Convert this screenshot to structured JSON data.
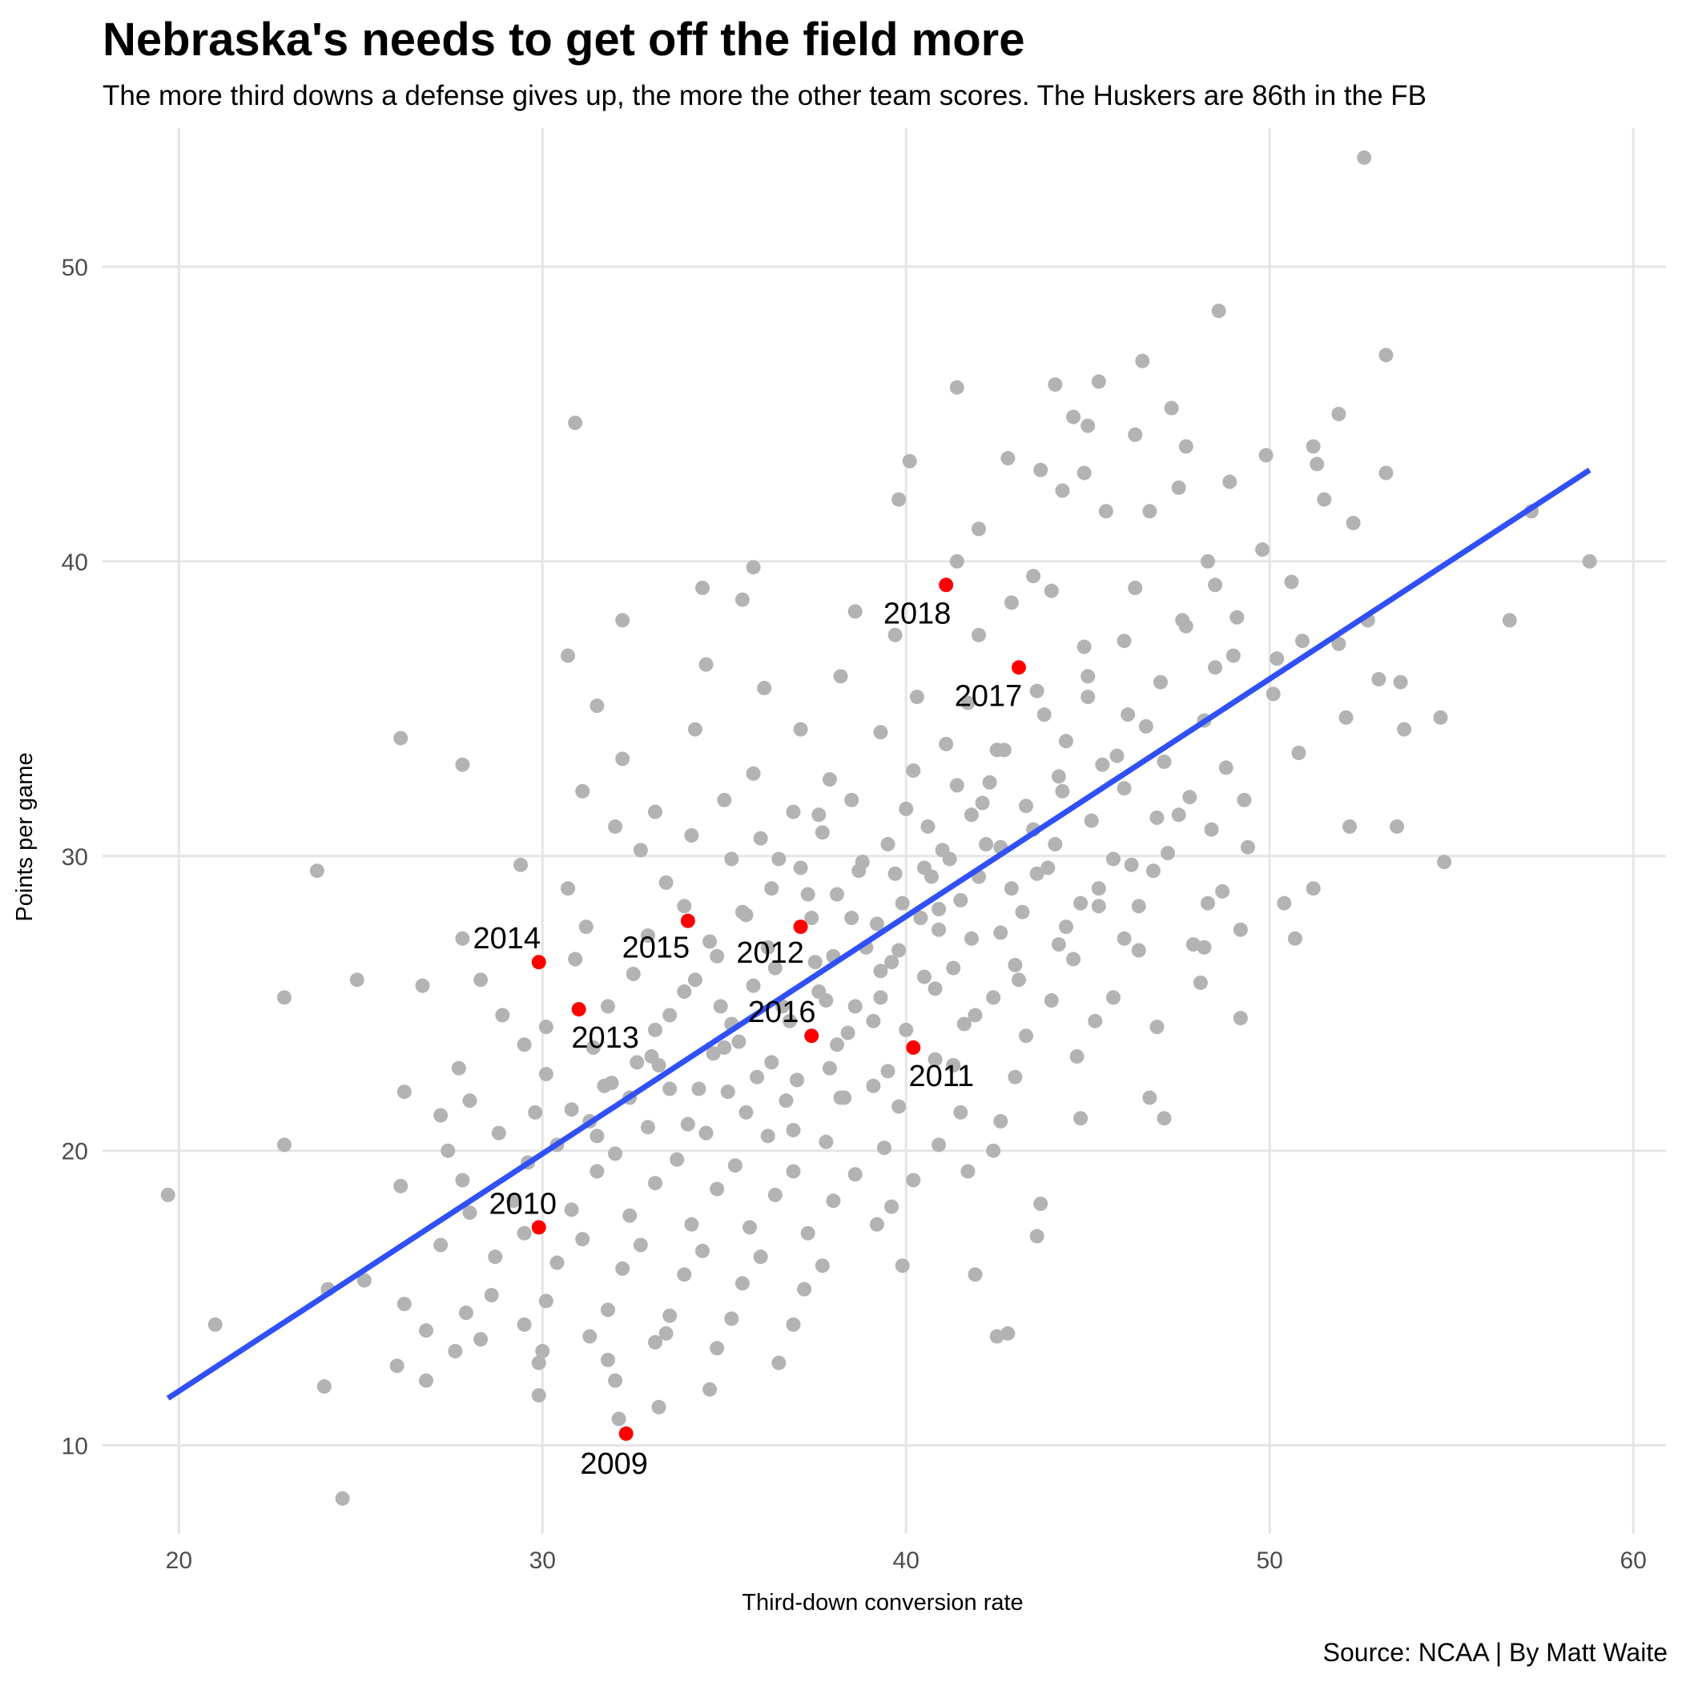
{
  "chart_data": {
    "type": "scatter",
    "title": "Nebraska's needs to get off the field more",
    "subtitle": "The more third downs a defense gives up, the more the other team scores. The Huskers are 86th in the FB",
    "caption": "Source: NCAA | By Matt Waite",
    "xlabel": "Third-down conversion rate",
    "ylabel": "Points per game",
    "xlim": [
      17.9,
      60.9
    ],
    "ylim": [
      7.0,
      54.7
    ],
    "xticks": [
      20,
      30,
      40,
      50,
      60
    ],
    "yticks": [
      10,
      20,
      30,
      40,
      50
    ],
    "grid": true,
    "colors": {
      "points": "#b3b3b3",
      "highlight": "#ff0000",
      "trend": "#3050f8",
      "grid": "#e5e5e5"
    },
    "trend_line": {
      "x": [
        19.7,
        58.8
      ],
      "y": [
        11.6,
        43.1
      ]
    },
    "highlighted": [
      {
        "label": "2009",
        "x": 32.3,
        "y": 10.4
      },
      {
        "label": "2010",
        "x": 29.9,
        "y": 17.4
      },
      {
        "label": "2011",
        "x": 40.2,
        "y": 23.5
      },
      {
        "label": "2012",
        "x": 37.1,
        "y": 27.6
      },
      {
        "label": "2013",
        "x": 31.0,
        "y": 24.8
      },
      {
        "label": "2014",
        "x": 29.9,
        "y": 26.4
      },
      {
        "label": "2015",
        "x": 34.0,
        "y": 27.8
      },
      {
        "label": "2016",
        "x": 37.4,
        "y": 23.9
      },
      {
        "label": "2017",
        "x": 43.1,
        "y": 36.4
      },
      {
        "label": "2018",
        "x": 41.1,
        "y": 39.2
      }
    ],
    "points": [
      [
        52.6,
        53.7
      ],
      [
        48.6,
        48.5
      ],
      [
        53.2,
        47.0
      ],
      [
        46.5,
        46.8
      ],
      [
        45.3,
        46.1
      ],
      [
        41.4,
        45.9
      ],
      [
        44.1,
        46.0
      ],
      [
        47.3,
        45.2
      ],
      [
        51.9,
        45.0
      ],
      [
        44.6,
        44.9
      ],
      [
        30.9,
        44.7
      ],
      [
        45.0,
        44.6
      ],
      [
        46.3,
        44.3
      ],
      [
        51.2,
        43.9
      ],
      [
        47.7,
        43.9
      ],
      [
        49.9,
        43.6
      ],
      [
        51.3,
        43.3
      ],
      [
        53.2,
        43.0
      ],
      [
        40.1,
        43.4
      ],
      [
        42.8,
        43.5
      ],
      [
        43.7,
        43.1
      ],
      [
        44.9,
        43.0
      ],
      [
        47.5,
        42.5
      ],
      [
        44.3,
        42.4
      ],
      [
        48.9,
        42.7
      ],
      [
        39.8,
        42.1
      ],
      [
        42.0,
        41.1
      ],
      [
        51.5,
        42.1
      ],
      [
        52.3,
        41.3
      ],
      [
        45.5,
        41.7
      ],
      [
        46.7,
        41.7
      ],
      [
        49.8,
        40.4
      ],
      [
        35.8,
        39.8
      ],
      [
        34.4,
        39.1
      ],
      [
        35.5,
        38.7
      ],
      [
        41.4,
        40.0
      ],
      [
        43.5,
        39.5
      ],
      [
        48.5,
        39.2
      ],
      [
        48.3,
        40.0
      ],
      [
        50.6,
        39.3
      ],
      [
        52.7,
        38.0
      ],
      [
        56.6,
        38.0
      ],
      [
        57.2,
        41.7
      ],
      [
        58.8,
        40.0
      ],
      [
        42.9,
        38.6
      ],
      [
        44.0,
        39.0
      ],
      [
        46.3,
        39.1
      ],
      [
        47.6,
        38.0
      ],
      [
        49.1,
        38.1
      ],
      [
        51.9,
        37.2
      ],
      [
        32.2,
        38.0
      ],
      [
        39.7,
        37.5
      ],
      [
        38.6,
        38.3
      ],
      [
        42.0,
        37.5
      ],
      [
        44.9,
        37.1
      ],
      [
        46.0,
        37.3
      ],
      [
        47.7,
        37.8
      ],
      [
        49.0,
        36.8
      ],
      [
        50.2,
        36.7
      ],
      [
        53.0,
        36.0
      ],
      [
        53.6,
        35.9
      ],
      [
        30.7,
        36.8
      ],
      [
        34.5,
        36.5
      ],
      [
        36.1,
        35.7
      ],
      [
        38.2,
        36.1
      ],
      [
        40.3,
        35.4
      ],
      [
        41.7,
        35.2
      ],
      [
        43.6,
        35.6
      ],
      [
        45.0,
        35.4
      ],
      [
        46.6,
        34.4
      ],
      [
        48.2,
        34.6
      ],
      [
        50.1,
        35.5
      ],
      [
        52.1,
        34.7
      ],
      [
        53.7,
        34.3
      ],
      [
        54.7,
        34.7
      ],
      [
        31.5,
        35.1
      ],
      [
        34.2,
        34.3
      ],
      [
        37.1,
        34.3
      ],
      [
        39.3,
        34.2
      ],
      [
        41.1,
        33.8
      ],
      [
        42.7,
        33.6
      ],
      [
        44.4,
        33.9
      ],
      [
        45.8,
        33.4
      ],
      [
        47.1,
        33.2
      ],
      [
        48.8,
        33.0
      ],
      [
        50.8,
        33.5
      ],
      [
        27.8,
        33.1
      ],
      [
        26.1,
        34.0
      ],
      [
        32.2,
        33.3
      ],
      [
        35.8,
        32.8
      ],
      [
        37.9,
        32.6
      ],
      [
        40.2,
        32.9
      ],
      [
        42.3,
        32.5
      ],
      [
        44.2,
        32.7
      ],
      [
        46.0,
        32.3
      ],
      [
        47.8,
        32.0
      ],
      [
        49.3,
        31.9
      ],
      [
        31.1,
        32.2
      ],
      [
        33.1,
        31.5
      ],
      [
        35.0,
        31.9
      ],
      [
        36.9,
        31.5
      ],
      [
        38.5,
        31.9
      ],
      [
        40.0,
        31.6
      ],
      [
        41.8,
        31.4
      ],
      [
        43.3,
        31.7
      ],
      [
        45.1,
        31.2
      ],
      [
        46.9,
        31.3
      ],
      [
        48.4,
        30.9
      ],
      [
        52.2,
        31.0
      ],
      [
        53.5,
        31.0
      ],
      [
        32.0,
        31.0
      ],
      [
        34.1,
        30.7
      ],
      [
        36.0,
        30.6
      ],
      [
        37.7,
        30.8
      ],
      [
        39.5,
        30.4
      ],
      [
        41.0,
        30.2
      ],
      [
        42.6,
        30.3
      ],
      [
        44.1,
        30.4
      ],
      [
        45.7,
        29.9
      ],
      [
        47.2,
        30.1
      ],
      [
        49.4,
        30.3
      ],
      [
        32.7,
        30.2
      ],
      [
        35.2,
        29.9
      ],
      [
        37.1,
        29.6
      ],
      [
        38.8,
        29.8
      ],
      [
        40.5,
        29.6
      ],
      [
        42.0,
        29.3
      ],
      [
        43.6,
        29.4
      ],
      [
        45.3,
        28.9
      ],
      [
        46.8,
        29.5
      ],
      [
        48.7,
        28.8
      ],
      [
        54.8,
        29.8
      ],
      [
        23.8,
        29.5
      ],
      [
        29.4,
        29.7
      ],
      [
        33.4,
        29.1
      ],
      [
        36.3,
        28.9
      ],
      [
        38.1,
        28.7
      ],
      [
        39.9,
        28.4
      ],
      [
        41.5,
        28.5
      ],
      [
        43.2,
        28.1
      ],
      [
        44.8,
        28.4
      ],
      [
        46.4,
        28.3
      ],
      [
        48.3,
        28.4
      ],
      [
        50.4,
        28.4
      ],
      [
        51.2,
        28.9
      ],
      [
        30.7,
        28.9
      ],
      [
        33.9,
        28.3
      ],
      [
        35.5,
        28.1
      ],
      [
        37.4,
        27.9
      ],
      [
        39.2,
        27.7
      ],
      [
        40.9,
        27.5
      ],
      [
        42.6,
        27.4
      ],
      [
        44.4,
        27.6
      ],
      [
        46.0,
        27.2
      ],
      [
        47.9,
        27.0
      ],
      [
        49.2,
        27.5
      ],
      [
        50.7,
        27.2
      ],
      [
        27.8,
        27.2
      ],
      [
        31.2,
        27.6
      ],
      [
        32.9,
        27.3
      ],
      [
        34.6,
        27.1
      ],
      [
        36.2,
        26.9
      ],
      [
        38.0,
        26.6
      ],
      [
        39.6,
        26.4
      ],
      [
        41.3,
        26.2
      ],
      [
        43.0,
        26.3
      ],
      [
        44.6,
        26.5
      ],
      [
        46.4,
        26.8
      ],
      [
        48.2,
        26.9
      ],
      [
        26.7,
        25.6
      ],
      [
        28.3,
        25.8
      ],
      [
        30.9,
        26.5
      ],
      [
        32.5,
        26.0
      ],
      [
        34.2,
        25.8
      ],
      [
        35.8,
        25.6
      ],
      [
        37.6,
        25.4
      ],
      [
        39.3,
        25.2
      ],
      [
        40.8,
        25.5
      ],
      [
        42.4,
        25.2
      ],
      [
        44.0,
        25.1
      ],
      [
        45.7,
        25.2
      ],
      [
        48.1,
        25.7
      ],
      [
        24.9,
        25.8
      ],
      [
        22.9,
        25.2
      ],
      [
        28.9,
        24.6
      ],
      [
        30.1,
        24.2
      ],
      [
        31.8,
        24.9
      ],
      [
        33.5,
        24.6
      ],
      [
        35.2,
        24.3
      ],
      [
        36.8,
        24.4
      ],
      [
        38.4,
        24.0
      ],
      [
        40.0,
        24.1
      ],
      [
        41.6,
        24.3
      ],
      [
        43.3,
        23.9
      ],
      [
        45.2,
        24.4
      ],
      [
        46.9,
        24.2
      ],
      [
        49.2,
        24.5
      ],
      [
        29.5,
        23.6
      ],
      [
        31.4,
        23.5
      ],
      [
        33.0,
        23.2
      ],
      [
        34.7,
        23.3
      ],
      [
        36.3,
        23.0
      ],
      [
        37.9,
        22.8
      ],
      [
        39.5,
        22.7
      ],
      [
        41.3,
        22.9
      ],
      [
        43.0,
        22.5
      ],
      [
        44.7,
        23.2
      ],
      [
        27.7,
        22.8
      ],
      [
        30.1,
        22.6
      ],
      [
        31.9,
        22.3
      ],
      [
        33.5,
        22.1
      ],
      [
        35.1,
        22.0
      ],
      [
        36.7,
        21.7
      ],
      [
        38.3,
        21.8
      ],
      [
        39.8,
        21.5
      ],
      [
        41.5,
        21.3
      ],
      [
        42.6,
        21.0
      ],
      [
        44.8,
        21.1
      ],
      [
        46.7,
        21.8
      ],
      [
        26.2,
        22.0
      ],
      [
        28.0,
        21.7
      ],
      [
        29.8,
        21.3
      ],
      [
        31.3,
        21.0
      ],
      [
        32.9,
        20.8
      ],
      [
        34.5,
        20.6
      ],
      [
        36.2,
        20.5
      ],
      [
        37.8,
        20.3
      ],
      [
        39.4,
        20.1
      ],
      [
        40.9,
        20.2
      ],
      [
        42.4,
        20.0
      ],
      [
        47.1,
        21.1
      ],
      [
        27.2,
        21.2
      ],
      [
        28.8,
        20.6
      ],
      [
        30.4,
        20.2
      ],
      [
        32.0,
        19.9
      ],
      [
        33.7,
        19.7
      ],
      [
        35.3,
        19.5
      ],
      [
        36.9,
        19.3
      ],
      [
        38.6,
        19.2
      ],
      [
        40.2,
        19.0
      ],
      [
        41.7,
        19.3
      ],
      [
        22.9,
        20.2
      ],
      [
        27.4,
        20.0
      ],
      [
        29.6,
        19.6
      ],
      [
        31.5,
        19.3
      ],
      [
        33.1,
        18.9
      ],
      [
        34.8,
        18.7
      ],
      [
        36.4,
        18.5
      ],
      [
        38.0,
        18.3
      ],
      [
        39.6,
        18.1
      ],
      [
        43.7,
        18.2
      ],
      [
        19.7,
        18.5
      ],
      [
        26.1,
        18.8
      ],
      [
        27.8,
        19.0
      ],
      [
        29.2,
        18.3
      ],
      [
        30.8,
        18.0
      ],
      [
        32.4,
        17.8
      ],
      [
        34.1,
        17.5
      ],
      [
        35.7,
        17.4
      ],
      [
        37.3,
        17.2
      ],
      [
        39.2,
        17.5
      ],
      [
        28.0,
        17.9
      ],
      [
        29.5,
        17.2
      ],
      [
        31.1,
        17.0
      ],
      [
        32.7,
        16.8
      ],
      [
        34.4,
        16.6
      ],
      [
        36.0,
        16.4
      ],
      [
        37.7,
        16.1
      ],
      [
        39.9,
        16.1
      ],
      [
        43.6,
        17.1
      ],
      [
        27.2,
        16.8
      ],
      [
        28.7,
        16.4
      ],
      [
        30.4,
        16.2
      ],
      [
        32.2,
        16.0
      ],
      [
        33.9,
        15.8
      ],
      [
        35.5,
        15.5
      ],
      [
        37.2,
        15.3
      ],
      [
        25.1,
        15.6
      ],
      [
        28.6,
        15.1
      ],
      [
        30.1,
        14.9
      ],
      [
        31.8,
        14.6
      ],
      [
        33.5,
        14.4
      ],
      [
        35.2,
        14.3
      ],
      [
        36.9,
        14.1
      ],
      [
        41.9,
        15.8
      ],
      [
        24.1,
        15.3
      ],
      [
        26.2,
        14.8
      ],
      [
        27.9,
        14.5
      ],
      [
        29.5,
        14.1
      ],
      [
        31.3,
        13.7
      ],
      [
        33.1,
        13.5
      ],
      [
        34.8,
        13.3
      ],
      [
        21.0,
        14.1
      ],
      [
        26.8,
        13.9
      ],
      [
        28.3,
        13.6
      ],
      [
        30.0,
        13.2
      ],
      [
        31.8,
        12.9
      ],
      [
        33.4,
        13.8
      ],
      [
        42.5,
        13.7
      ],
      [
        42.8,
        13.8
      ],
      [
        26.0,
        12.7
      ],
      [
        27.6,
        13.2
      ],
      [
        29.9,
        12.8
      ],
      [
        32.0,
        12.2
      ],
      [
        36.5,
        12.8
      ],
      [
        24.0,
        12.0
      ],
      [
        26.8,
        12.2
      ],
      [
        29.9,
        11.7
      ],
      [
        33.2,
        11.3
      ],
      [
        34.6,
        11.9
      ],
      [
        32.1,
        10.9
      ],
      [
        24.5,
        8.2
      ],
      [
        31.5,
        20.5
      ],
      [
        35.9,
        22.5
      ],
      [
        38.9,
        26.9
      ],
      [
        40.7,
        29.3
      ],
      [
        42.1,
        31.8
      ],
      [
        37.3,
        28.7
      ],
      [
        36.4,
        26.2
      ],
      [
        34.9,
        24.9
      ],
      [
        33.2,
        22.9
      ],
      [
        32.4,
        21.8
      ],
      [
        38.6,
        24.9
      ],
      [
        39.3,
        26.1
      ],
      [
        40.4,
        27.9
      ],
      [
        41.2,
        29.9
      ],
      [
        43.5,
        30.9
      ],
      [
        44.3,
        32.2
      ],
      [
        45.4,
        33.1
      ],
      [
        46.1,
        34.8
      ],
      [
        47.0,
        35.9
      ],
      [
        48.5,
        36.4
      ],
      [
        50.9,
        37.3
      ],
      [
        37.0,
        22.4
      ],
      [
        35.6,
        21.3
      ],
      [
        34.0,
        20.9
      ],
      [
        38.1,
        23.6
      ],
      [
        39.1,
        24.4
      ],
      [
        40.5,
        25.9
      ],
      [
        41.8,
        27.2
      ],
      [
        42.9,
        28.9
      ],
      [
        43.9,
        29.6
      ],
      [
        35.4,
        23.7
      ],
      [
        36.6,
        24.9
      ],
      [
        37.5,
        26.4
      ],
      [
        38.5,
        27.9
      ],
      [
        39.7,
        29.4
      ],
      [
        40.6,
        31.0
      ],
      [
        41.4,
        32.4
      ],
      [
        42.5,
        33.6
      ],
      [
        43.8,
        34.8
      ],
      [
        45.0,
        36.1
      ],
      [
        36.9,
        20.7
      ],
      [
        38.2,
        21.8
      ],
      [
        39.1,
        22.2
      ],
      [
        40.8,
        23.1
      ],
      [
        41.9,
        24.6
      ],
      [
        43.1,
        25.8
      ],
      [
        44.2,
        27.0
      ],
      [
        45.3,
        28.3
      ],
      [
        46.2,
        29.7
      ],
      [
        47.5,
        31.4
      ],
      [
        34.3,
        22.1
      ],
      [
        35.0,
        23.5
      ],
      [
        37.8,
        25.1
      ],
      [
        39.8,
        26.8
      ],
      [
        40.9,
        28.2
      ],
      [
        42.2,
        30.4
      ],
      [
        38.7,
        29.5
      ],
      [
        37.6,
        31.4
      ],
      [
        36.5,
        29.9
      ],
      [
        35.6,
        28.0
      ],
      [
        34.8,
        26.6
      ],
      [
        33.9,
        25.4
      ],
      [
        33.1,
        24.1
      ],
      [
        32.6,
        23.0
      ],
      [
        31.7,
        22.2
      ],
      [
        30.8,
        21.4
      ]
    ]
  }
}
